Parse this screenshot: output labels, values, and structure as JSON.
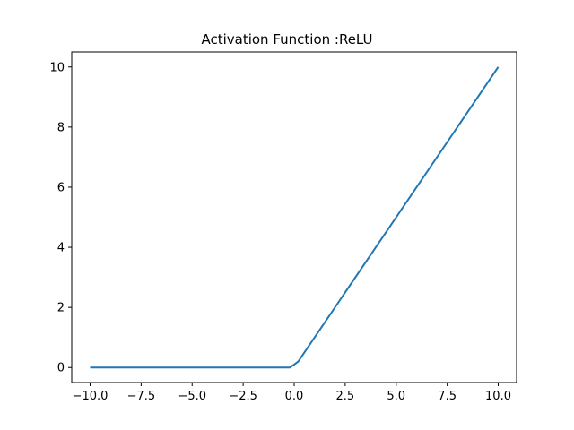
{
  "chart_data": {
    "type": "line",
    "title": "Activation Function :ReLU",
    "xlabel": "",
    "ylabel": "",
    "xlim": [
      -10.9,
      10.9
    ],
    "ylim": [
      -0.5,
      10.5
    ],
    "grid": false,
    "legend": "none",
    "x_ticks": [
      "−10.0",
      "−7.5",
      "−5.0",
      "−2.5",
      "0.0",
      "2.5",
      "5.0",
      "7.5",
      "10.0"
    ],
    "x_tick_values": [
      -10,
      -7.5,
      -5,
      -2.5,
      0,
      2.5,
      5,
      7.5,
      10
    ],
    "y_ticks": [
      "0",
      "2",
      "4",
      "6",
      "8",
      "10"
    ],
    "y_tick_values": [
      0,
      2,
      4,
      6,
      8,
      10
    ],
    "series": [
      {
        "color": "#1f77b4",
        "x": [
          -10,
          -0.2,
          0.2,
          10
        ],
        "y": [
          0,
          0,
          0.2,
          10
        ]
      }
    ]
  }
}
